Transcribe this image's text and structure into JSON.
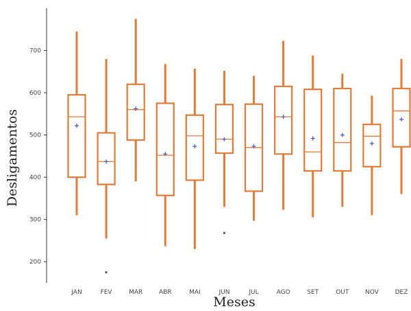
{
  "chart_data": {
    "type": "box",
    "xlabel": "Meses",
    "ylabel": "Desligamentos",
    "ylim": [
      150,
      800
    ],
    "yticks": [
      200,
      300,
      400,
      500,
      600,
      700
    ],
    "categories": [
      "JAN",
      "FEV",
      "MAR",
      "ABR",
      "MAI",
      "JUN",
      "JUL",
      "AGO",
      "SET",
      "OUT",
      "NOV",
      "DEZ"
    ],
    "series": [
      {
        "label": "JAN",
        "min": 310,
        "q1": 400,
        "median": 543,
        "q3": 595,
        "max": 745,
        "mean": 522,
        "outliers": []
      },
      {
        "label": "FEV",
        "min": 255,
        "q1": 383,
        "median": 437,
        "q3": 505,
        "max": 680,
        "mean": 437,
        "outliers": [
          175
        ]
      },
      {
        "label": "MAR",
        "min": 390,
        "q1": 488,
        "median": 560,
        "q3": 620,
        "max": 775,
        "mean": 562,
        "outliers": []
      },
      {
        "label": "ABR",
        "min": 237,
        "q1": 357,
        "median": 452,
        "q3": 575,
        "max": 668,
        "mean": 455,
        "outliers": []
      },
      {
        "label": "MAI",
        "min": 230,
        "q1": 393,
        "median": 498,
        "q3": 547,
        "max": 657,
        "mean": 473,
        "outliers": []
      },
      {
        "label": "JUN",
        "min": 330,
        "q1": 457,
        "median": 490,
        "q3": 572,
        "max": 652,
        "mean": 490,
        "outliers": [
          268
        ]
      },
      {
        "label": "JUL",
        "min": 297,
        "q1": 367,
        "median": 470,
        "q3": 573,
        "max": 640,
        "mean": 473,
        "outliers": []
      },
      {
        "label": "AGO",
        "min": 323,
        "q1": 455,
        "median": 543,
        "q3": 615,
        "max": 723,
        "mean": 543,
        "outliers": []
      },
      {
        "label": "SET",
        "min": 305,
        "q1": 415,
        "median": 460,
        "q3": 608,
        "max": 688,
        "mean": 492,
        "outliers": []
      },
      {
        "label": "OUT",
        "min": 330,
        "q1": 415,
        "median": 482,
        "q3": 610,
        "max": 645,
        "mean": 500,
        "outliers": []
      },
      {
        "label": "NOV",
        "min": 310,
        "q1": 425,
        "median": 497,
        "q3": 525,
        "max": 593,
        "mean": 480,
        "outliers": []
      },
      {
        "label": "DEZ",
        "min": 360,
        "q1": 472,
        "median": 557,
        "q3": 610,
        "max": 680,
        "mean": 537,
        "outliers": []
      }
    ],
    "colors": {
      "box": "#e07b39",
      "median": "#e07b39",
      "mean": "#4a5fc1",
      "outlier": "#555555"
    },
    "grid": false
  }
}
